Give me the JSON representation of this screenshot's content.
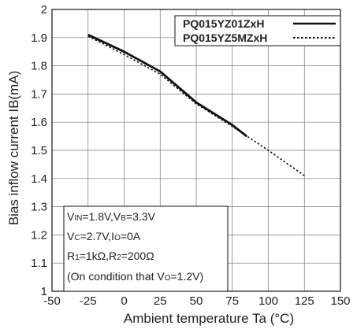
{
  "chart_data": {
    "type": "line",
    "xlabel": "Ambient temperature Ta (°C)",
    "ylabel": "Bias inflow current IB(mA)",
    "xlim": [
      -50,
      150
    ],
    "ylim": [
      1,
      2
    ],
    "xticks": [
      -50,
      -25,
      0,
      25,
      50,
      75,
      100,
      125,
      150
    ],
    "yticks": [
      1,
      1.1,
      1.2,
      1.3,
      1.4,
      1.5,
      1.6,
      1.7,
      1.8,
      1.9,
      2
    ],
    "grid": true,
    "legend_position": "top-right",
    "series": [
      {
        "name": "PQ015YZ01ZxH",
        "style": "solid",
        "color": "#111111",
        "x": [
          -25,
          0,
          25,
          50,
          75,
          85
        ],
        "y": [
          1.91,
          1.85,
          1.78,
          1.67,
          1.59,
          1.55
        ]
      },
      {
        "name": "PQ015YZ5MZxH",
        "style": "dotted",
        "color": "#111111",
        "x": [
          -25,
          0,
          25,
          50,
          75,
          100,
          125
        ],
        "y": [
          1.905,
          1.84,
          1.77,
          1.665,
          1.585,
          1.5,
          1.41
        ]
      }
    ]
  },
  "conditions": {
    "line1": {
      "v": "V",
      "s1": "IN",
      "t1": "=1.8V,V",
      "s2": "B",
      "t2": "=3.3V"
    },
    "line2": {
      "v": "V",
      "s1": "C",
      "t1": "=2.7V,I",
      "s2": "O",
      "t2": "=0A"
    },
    "line3": {
      "v": "R",
      "s1": "1",
      "t1": "=1kΩ,R",
      "s2": "2",
      "t2": "=200Ω"
    },
    "line4": {
      "pre": "(On condition that V",
      "s1": "O",
      "post": "=1.2V)"
    }
  }
}
